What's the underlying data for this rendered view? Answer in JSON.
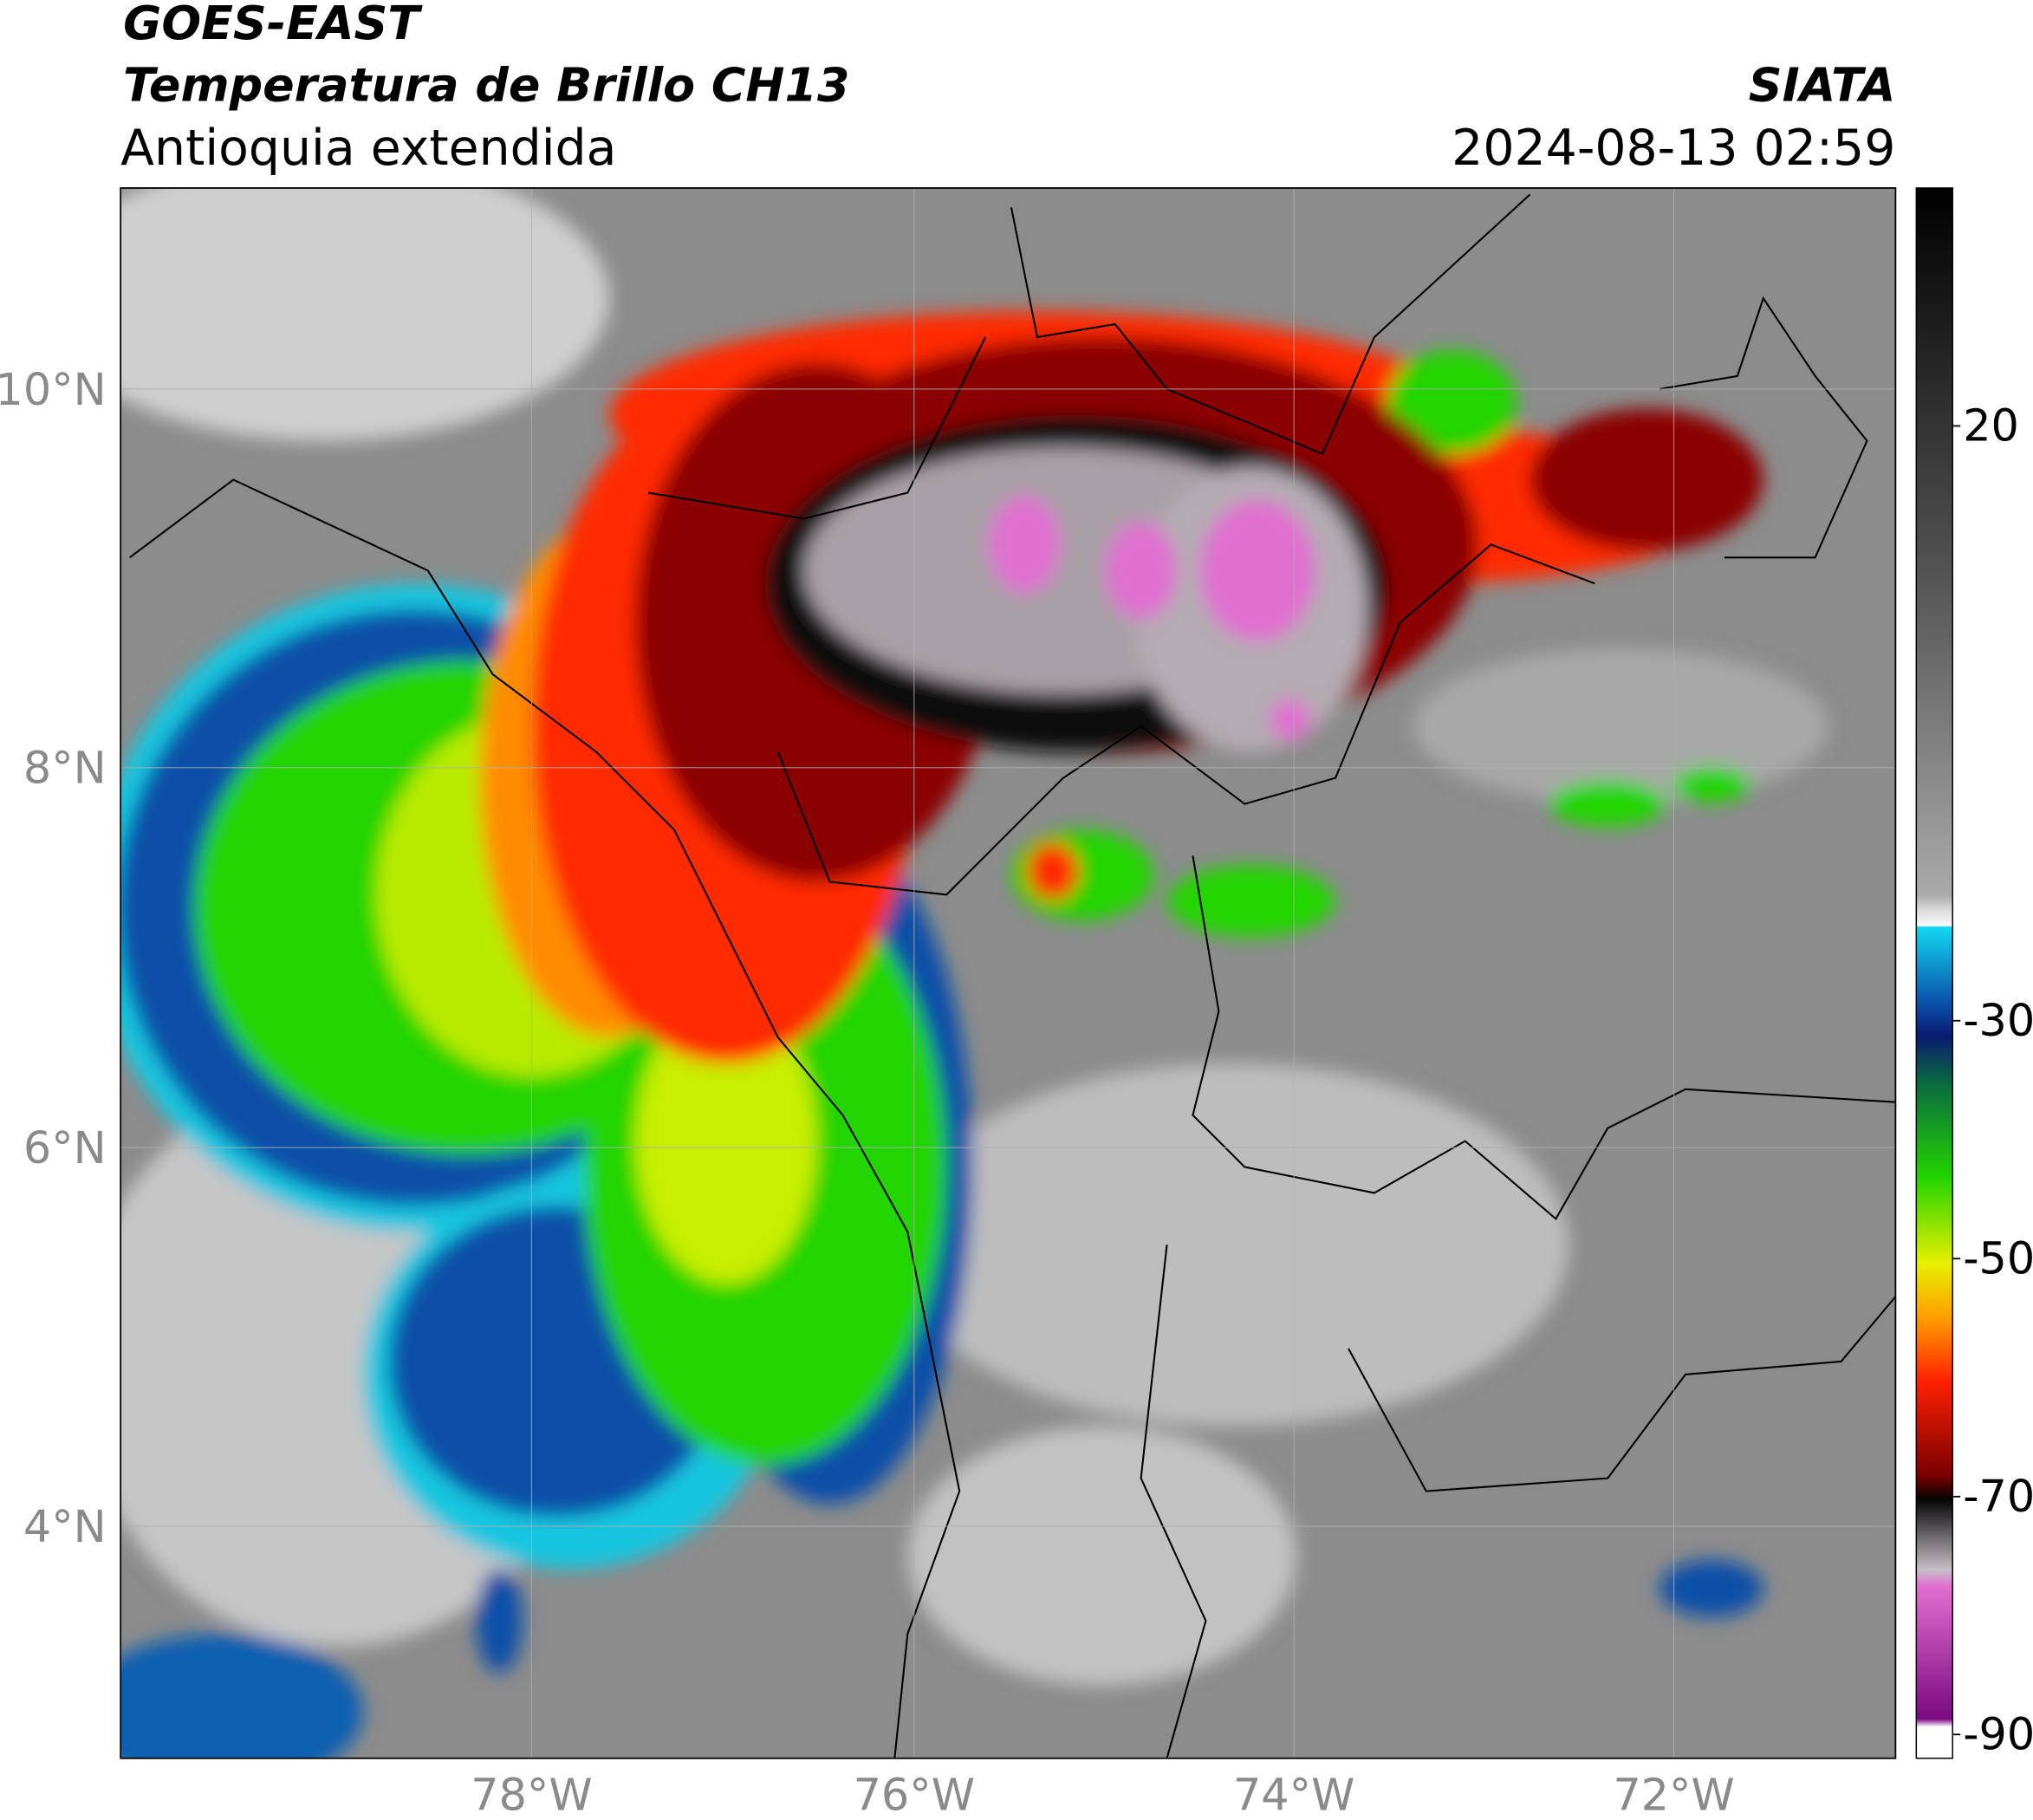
{
  "header": {
    "title": "GOES-EAST",
    "subtitle": "Temperatura de Brillo CH13",
    "region": "Antioquia extendida",
    "source": "SIATA",
    "datetime": "2024-08-13 02:59"
  },
  "map": {
    "lat_ticks": [
      "10°N",
      "8°N",
      "6°N",
      "4°N"
    ],
    "lon_ticks": [
      "78°W",
      "76°W",
      "74°W",
      "72°W"
    ]
  },
  "colorbar": {
    "range": [
      -92,
      40
    ],
    "ticks": [
      20,
      -30,
      -50,
      -70,
      -90
    ]
  }
}
